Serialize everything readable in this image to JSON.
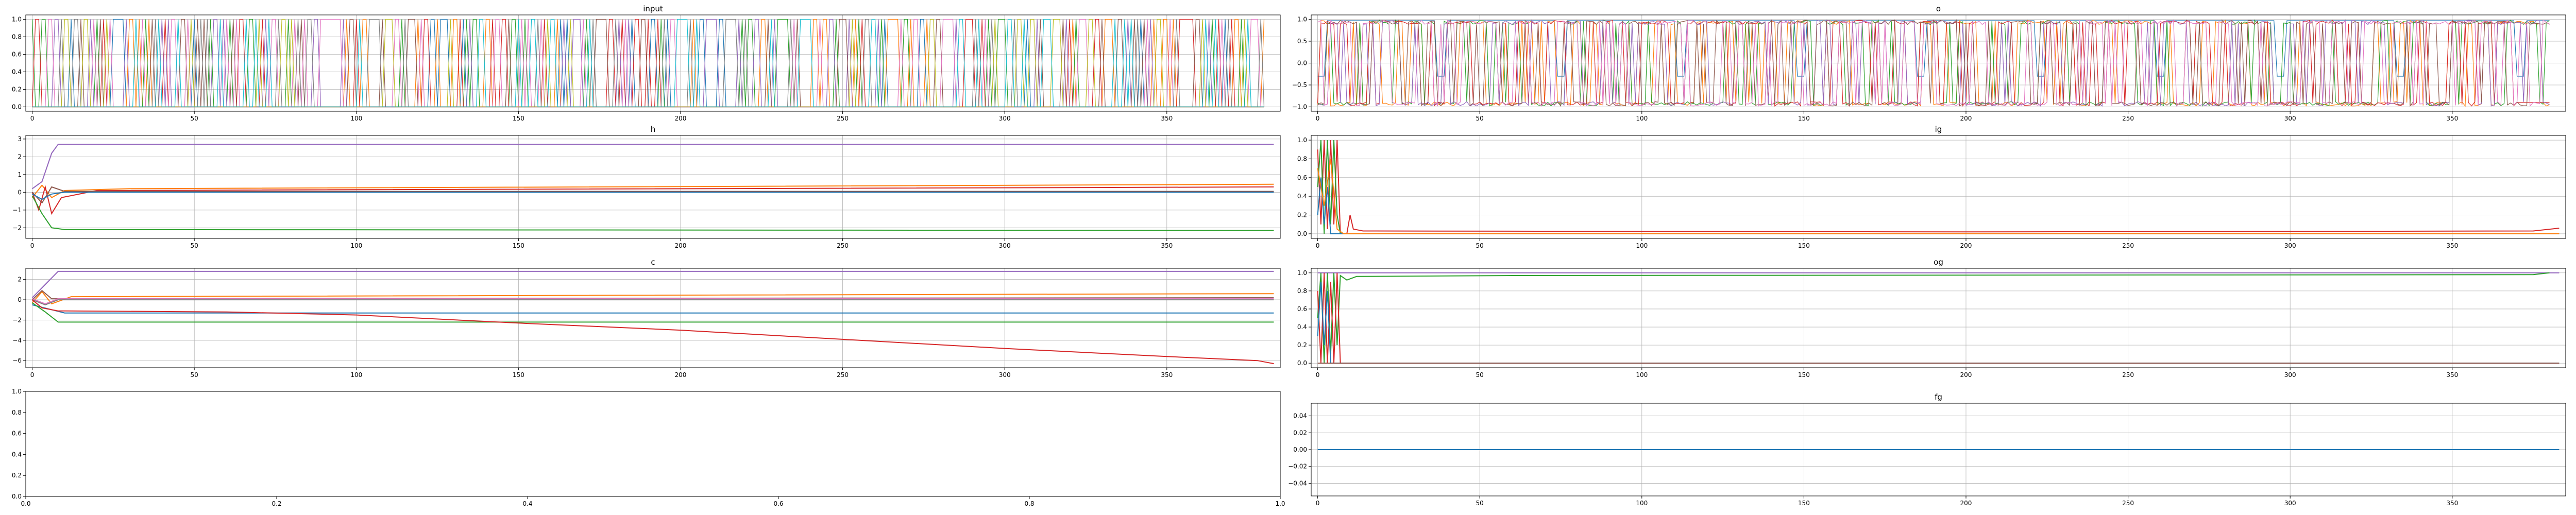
{
  "chart_data": [
    {
      "type": "line",
      "title": "input",
      "xlabel": "",
      "ylabel": "",
      "xlim": [
        -2,
        385
      ],
      "ylim": [
        -0.05,
        1.05
      ],
      "xticks": [
        0,
        50,
        100,
        150,
        200,
        250,
        300,
        350
      ],
      "yticks": [
        0.0,
        0.2,
        0.4,
        0.6,
        0.8,
        1.0
      ],
      "ytick_labels": [
        "0.0",
        "0.2",
        "0.4",
        "0.6",
        "0.8",
        "1.0"
      ],
      "grid": true,
      "n_steps": 381,
      "pattern": "one-hot switching signals (values 0 or 1) across ~10 series",
      "series": [
        {
          "color": "#1f77b4"
        },
        {
          "color": "#ff7f0e"
        },
        {
          "color": "#2ca02c"
        },
        {
          "color": "#d62728"
        },
        {
          "color": "#9467bd"
        },
        {
          "color": "#8c564b"
        },
        {
          "color": "#e377c2"
        },
        {
          "color": "#7f7f7f"
        },
        {
          "color": "#bcbd22"
        },
        {
          "color": "#17becf"
        }
      ]
    },
    {
      "type": "line",
      "title": "o",
      "xlabel": "",
      "ylabel": "",
      "xlim": [
        -2,
        385
      ],
      "ylim": [
        -1.1,
        1.1
      ],
      "xticks": [
        0,
        50,
        100,
        150,
        200,
        250,
        300,
        350
      ],
      "yticks": [
        -1.0,
        -0.5,
        0.0,
        0.5,
        1.0
      ],
      "ytick_labels": [
        "−1.0",
        "−0.5",
        "0.0",
        "0.5",
        "1.0"
      ],
      "grid": true,
      "n_steps": 381,
      "pattern": "outputs saturating near -1 and +1, rapidly switching",
      "series": [
        {
          "color": "#1f77b4"
        },
        {
          "color": "#ff7f0e"
        },
        {
          "color": "#2ca02c"
        },
        {
          "color": "#d62728"
        },
        {
          "color": "#9467bd"
        },
        {
          "color": "#8c564b"
        },
        {
          "color": "#e377c2"
        }
      ]
    },
    {
      "type": "line",
      "title": "h",
      "xlabel": "",
      "ylabel": "",
      "xlim": [
        -2,
        385
      ],
      "ylim": [
        -2.6,
        3.2
      ],
      "xticks": [
        0,
        50,
        100,
        150,
        200,
        250,
        300,
        350
      ],
      "yticks": [
        -2,
        -1,
        0,
        1,
        2,
        3
      ],
      "ytick_labels": [
        "−2",
        "−1",
        "0",
        "1",
        "2",
        "3"
      ],
      "grid": true,
      "series": [
        {
          "color": "#9467bd",
          "points": [
            [
              0,
              0.2
            ],
            [
              3,
              0.6
            ],
            [
              6,
              2.2
            ],
            [
              8,
              2.7
            ],
            [
              383,
              2.7
            ]
          ]
        },
        {
          "color": "#ff7f0e",
          "points": [
            [
              0,
              -0.3
            ],
            [
              3,
              0.4
            ],
            [
              6,
              -0.3
            ],
            [
              10,
              0.1
            ],
            [
              30,
              0.2
            ],
            [
              383,
              0.45
            ]
          ]
        },
        {
          "color": "#d62728",
          "points": [
            [
              0,
              0.0
            ],
            [
              2,
              -1.0
            ],
            [
              4,
              0.3
            ],
            [
              6,
              -1.2
            ],
            [
              9,
              -0.3
            ],
            [
              20,
              0.1
            ],
            [
              383,
              0.3
            ]
          ]
        },
        {
          "color": "#8c564b",
          "points": [
            [
              0,
              0.0
            ],
            [
              3,
              -0.6
            ],
            [
              6,
              0.3
            ],
            [
              10,
              0.05
            ],
            [
              383,
              0.05
            ]
          ]
        },
        {
          "color": "#1f77b4",
          "points": [
            [
              0,
              -0.1
            ],
            [
              3,
              -0.4
            ],
            [
              6,
              -0.1
            ],
            [
              10,
              0.0
            ],
            [
              383,
              0.0
            ]
          ]
        },
        {
          "color": "#2ca02c",
          "points": [
            [
              0,
              -0.2
            ],
            [
              3,
              -1.2
            ],
            [
              6,
              -2.0
            ],
            [
              10,
              -2.1
            ],
            [
              383,
              -2.15
            ]
          ]
        }
      ]
    },
    {
      "type": "line",
      "title": "ig",
      "xlabel": "",
      "ylabel": "",
      "xlim": [
        -2,
        385
      ],
      "ylim": [
        -0.05,
        1.05
      ],
      "xticks": [
        0,
        50,
        100,
        150,
        200,
        250,
        300,
        350
      ],
      "yticks": [
        0.0,
        0.2,
        0.4,
        0.6,
        0.8,
        1.0
      ],
      "ytick_labels": [
        "0.0",
        "0.2",
        "0.4",
        "0.6",
        "0.8",
        "1.0"
      ],
      "grid": true,
      "series": [
        {
          "color": "#d62728",
          "points": [
            [
              0,
              0.9
            ],
            [
              1,
              0.1
            ],
            [
              2,
              1.0
            ],
            [
              3,
              0.05
            ],
            [
              4,
              1.0
            ],
            [
              5,
              0.1
            ],
            [
              6,
              1.0
            ],
            [
              7,
              0.0
            ],
            [
              9,
              0.0
            ],
            [
              10,
              0.2
            ],
            [
              11,
              0.05
            ],
            [
              14,
              0.03
            ],
            [
              200,
              0.02
            ],
            [
              375,
              0.03
            ],
            [
              383,
              0.06
            ]
          ]
        },
        {
          "color": "#2ca02c",
          "points": [
            [
              0,
              0.5
            ],
            [
              1,
              1.0
            ],
            [
              2,
              0.0
            ],
            [
              3,
              1.0
            ],
            [
              4,
              0.1
            ],
            [
              5,
              1.0
            ],
            [
              6,
              0.2
            ],
            [
              7,
              0.0
            ],
            [
              383,
              0.0
            ]
          ]
        },
        {
          "color": "#1f77b4",
          "points": [
            [
              0,
              0.2
            ],
            [
              1,
              0.6
            ],
            [
              2,
              0.1
            ],
            [
              3,
              0.5
            ],
            [
              4,
              0.0
            ],
            [
              383,
              0.0
            ]
          ]
        },
        {
          "color": "#ff7f0e",
          "points": [
            [
              0,
              0.7
            ],
            [
              2,
              0.3
            ],
            [
              4,
              0.8
            ],
            [
              6,
              0.05
            ],
            [
              8,
              0.0
            ],
            [
              383,
              0.0
            ]
          ]
        }
      ]
    },
    {
      "type": "line",
      "title": "c",
      "xlabel": "",
      "ylabel": "",
      "xlim": [
        -2,
        385
      ],
      "ylim": [
        -6.7,
        3.1
      ],
      "xticks": [
        0,
        50,
        100,
        150,
        200,
        250,
        300,
        350
      ],
      "yticks": [
        -6,
        -4,
        -2,
        0,
        2
      ],
      "ytick_labels": [
        "−6",
        "−4",
        "−2",
        "0",
        "2"
      ],
      "grid": true,
      "series": [
        {
          "color": "#9467bd",
          "points": [
            [
              0,
              0.2
            ],
            [
              4,
              1.5
            ],
            [
              8,
              2.8
            ],
            [
              383,
              2.8
            ]
          ]
        },
        {
          "color": "#ff7f0e",
          "points": [
            [
              0,
              -0.3
            ],
            [
              3,
              0.8
            ],
            [
              6,
              -0.4
            ],
            [
              12,
              0.3
            ],
            [
              383,
              0.6
            ]
          ]
        },
        {
          "color": "#8c564b",
          "points": [
            [
              0,
              0.0
            ],
            [
              3,
              0.9
            ],
            [
              6,
              0.1
            ],
            [
              12,
              0.1
            ],
            [
              383,
              0.2
            ]
          ]
        },
        {
          "color": "#e377c2",
          "points": [
            [
              0,
              0.1
            ],
            [
              4,
              -0.4
            ],
            [
              8,
              0.1
            ],
            [
              383,
              0.1
            ]
          ]
        },
        {
          "color": "#7f7f7f",
          "points": [
            [
              0,
              0.0
            ],
            [
              4,
              -0.5
            ],
            [
              8,
              0.0
            ],
            [
              383,
              0.0
            ]
          ]
        },
        {
          "color": "#1f77b4",
          "points": [
            [
              0,
              -0.5
            ],
            [
              10,
              -1.3
            ],
            [
              383,
              -1.3
            ]
          ]
        },
        {
          "color": "#2ca02c",
          "points": [
            [
              0,
              -0.3
            ],
            [
              4,
              -1.2
            ],
            [
              8,
              -2.2
            ],
            [
              12,
              -2.2
            ],
            [
              383,
              -2.2
            ]
          ]
        },
        {
          "color": "#d62728",
          "points": [
            [
              0,
              0.0
            ],
            [
              3,
              -0.8
            ],
            [
              8,
              -1.1
            ],
            [
              60,
              -1.2
            ],
            [
              100,
              -1.5
            ],
            [
              150,
              -2.3
            ],
            [
              200,
              -3.0
            ],
            [
              250,
              -3.9
            ],
            [
              300,
              -4.8
            ],
            [
              350,
              -5.6
            ],
            [
              378,
              -6.0
            ],
            [
              383,
              -6.3
            ]
          ]
        }
      ]
    },
    {
      "type": "line",
      "title": "og",
      "xlabel": "",
      "ylabel": "",
      "xlim": [
        -2,
        385
      ],
      "ylim": [
        -0.05,
        1.05
      ],
      "xticks": [
        0,
        50,
        100,
        150,
        200,
        250,
        300,
        350
      ],
      "yticks": [
        0.0,
        0.2,
        0.4,
        0.6,
        0.8,
        1.0
      ],
      "ytick_labels": [
        "0.0",
        "0.2",
        "0.4",
        "0.6",
        "0.8",
        "1.0"
      ],
      "grid": true,
      "series": [
        {
          "color": "#9467bd",
          "points": [
            [
              0,
              1.0
            ],
            [
              383,
              1.0
            ]
          ]
        },
        {
          "color": "#2ca02c",
          "points": [
            [
              0,
              0.5
            ],
            [
              1,
              1.0
            ],
            [
              2,
              0.0
            ],
            [
              3,
              1.0
            ],
            [
              4,
              0.1
            ],
            [
              5,
              1.0
            ],
            [
              6,
              0.2
            ],
            [
              7,
              0.97
            ],
            [
              9,
              0.92
            ],
            [
              12,
              0.96
            ],
            [
              60,
              0.97
            ],
            [
              375,
              0.98
            ],
            [
              380,
              1.0
            ]
          ]
        },
        {
          "color": "#d62728",
          "points": [
            [
              0,
              0.8
            ],
            [
              1,
              0.0
            ],
            [
              2,
              1.0
            ],
            [
              3,
              0.0
            ],
            [
              4,
              0.9
            ],
            [
              5,
              0.0
            ],
            [
              6,
              1.0
            ],
            [
              7,
              0.0
            ],
            [
              383,
              0.0
            ]
          ]
        },
        {
          "color": "#1f77b4",
          "points": [
            [
              0,
              0.3
            ],
            [
              1,
              0.9
            ],
            [
              2,
              0.2
            ],
            [
              3,
              0.8
            ],
            [
              4,
              0.0
            ],
            [
              383,
              0.0
            ]
          ]
        },
        {
          "color": "#8c564b",
          "points": [
            [
              0,
              0.0
            ],
            [
              383,
              0.0
            ]
          ]
        }
      ]
    },
    {
      "type": "line",
      "title": "",
      "xlabel": "",
      "ylabel": "",
      "xlim": [
        0,
        1
      ],
      "ylim": [
        0,
        1
      ],
      "xticks": [
        0.0,
        0.2,
        0.4,
        0.6,
        0.8,
        1.0
      ],
      "xtick_labels": [
        "0.0",
        "0.2",
        "0.4",
        "0.6",
        "0.8",
        "1.0"
      ],
      "yticks": [
        0.0,
        0.2,
        0.4,
        0.6,
        0.8,
        1.0
      ],
      "ytick_labels": [
        "0.0",
        "0.2",
        "0.4",
        "0.6",
        "0.8",
        "1.0"
      ],
      "grid": false,
      "series": []
    },
    {
      "type": "line",
      "title": "fg",
      "xlabel": "",
      "ylabel": "",
      "xlim": [
        -2,
        385
      ],
      "ylim": [
        -0.055,
        0.055
      ],
      "xticks": [
        0,
        50,
        100,
        150,
        200,
        250,
        300,
        350
      ],
      "yticks": [
        -0.04,
        -0.02,
        0.0,
        0.02,
        0.04
      ],
      "ytick_labels": [
        "−0.04",
        "−0.02",
        "0.00",
        "0.02",
        "0.04"
      ],
      "grid": true,
      "series": [
        {
          "color": "#1f77b4",
          "points": [
            [
              0,
              0.0
            ],
            [
              383,
              0.0
            ]
          ]
        }
      ]
    }
  ]
}
